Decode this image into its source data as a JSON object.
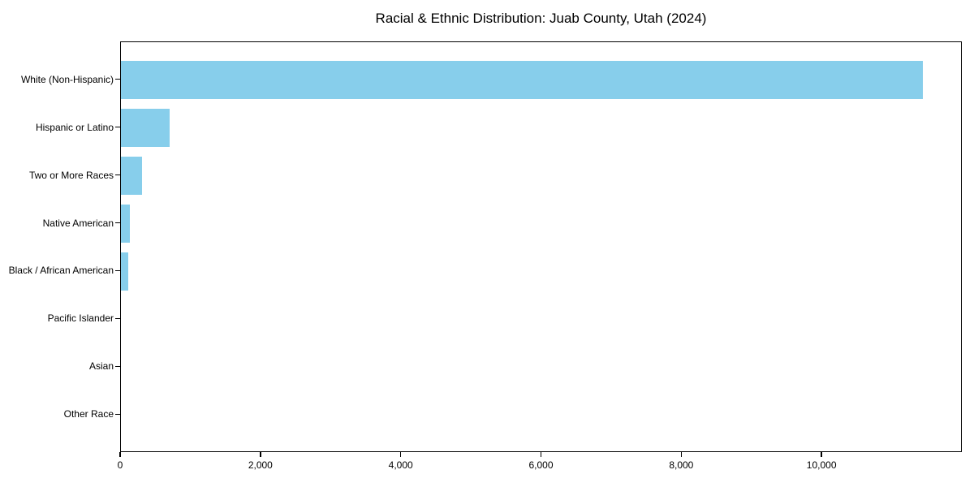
{
  "chart_data": {
    "type": "bar",
    "orientation": "horizontal",
    "title": "Racial & Ethnic Distribution: Juab County, Utah (2024)",
    "categories": [
      "White (Non-Hispanic)",
      "Hispanic or Latino",
      "Two or More Races",
      "Native American",
      "Black / African American",
      "Pacific Islander",
      "Asian",
      "Other Race"
    ],
    "values": [
      11430,
      695,
      300,
      125,
      100,
      0,
      0,
      0
    ],
    "xlabel": "",
    "ylabel": "",
    "xlim": [
      0,
      12000
    ],
    "xticks": [
      0,
      2000,
      4000,
      6000,
      8000,
      10000
    ],
    "xtick_labels": [
      "0",
      "2,000",
      "4,000",
      "6,000",
      "8,000",
      "10,000"
    ],
    "grid": false,
    "legend_position": "none",
    "bar_color": "#87CEEB",
    "axis_color": "#000000",
    "background_color": "#ffffff"
  }
}
